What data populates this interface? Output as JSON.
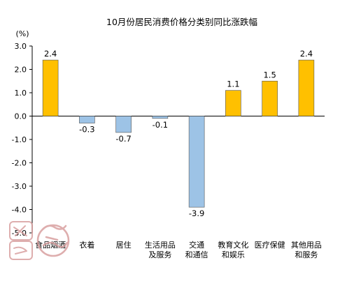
{
  "chart_data": {
    "type": "bar",
    "title": "10月份居民消费价格分类别同比涨跌幅",
    "unit": "(%)",
    "categories": [
      [
        "食品烟酒"
      ],
      [
        "衣着"
      ],
      [
        "居住"
      ],
      [
        "生活用品",
        "及服务"
      ],
      [
        "交通",
        "和通信"
      ],
      [
        "教育文化",
        "和娱乐"
      ],
      [
        "医疗保健"
      ],
      [
        "其他用品",
        "和服务"
      ]
    ],
    "values": [
      2.4,
      -0.3,
      -0.7,
      -0.1,
      -3.9,
      1.1,
      1.5,
      2.4
    ],
    "value_labels": [
      "2.4",
      "-0.3",
      "-0.7",
      "-0.1",
      "-3.9",
      "1.1",
      "1.5",
      "2.4"
    ],
    "ylim": [
      -5.0,
      3.0
    ],
    "yticks": [
      3.0,
      2.0,
      1.0,
      0.0,
      -1.0,
      -2.0,
      -3.0,
      -4.0,
      -5.0
    ],
    "ytick_labels": [
      "3.0",
      "2.0",
      "1.0",
      "0.0",
      "-1.0",
      "-2.0",
      "-3.0",
      "-4.0",
      "-5.0"
    ],
    "grid": false,
    "legend": "none",
    "colors": {
      "positive": "#FFC000",
      "negative": "#9DC3E6",
      "bar_edge": "#555555",
      "axis": "#000000"
    }
  },
  "stamp": {
    "text": "统计图表",
    "color": "#d9a0a0"
  }
}
